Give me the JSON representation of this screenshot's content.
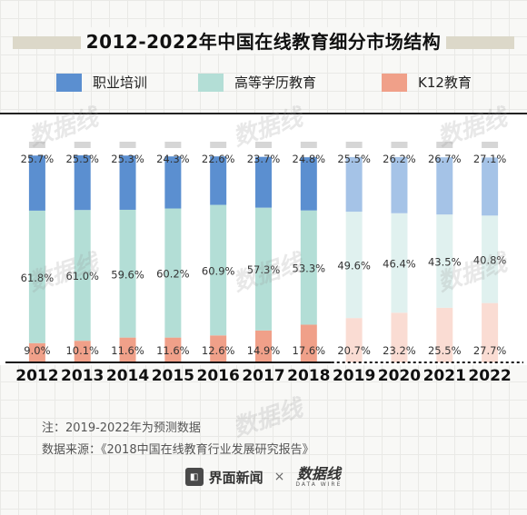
{
  "title": "2012-2022年中国在线教育细分市场结构",
  "legend": [
    {
      "label": "职业培训",
      "color": "#5b8fd0"
    },
    {
      "label": "高等学历教育",
      "color": "#b3ded6"
    },
    {
      "label": "K12教育",
      "color": "#f0a089"
    }
  ],
  "notes": {
    "note1": "注：2019-2022年为预测数据",
    "note2": "数据来源：《2018中国在线教育行业发展研究报告》"
  },
  "footer": {
    "jiemian_logo_icon": "jiemian-logo-icon",
    "jiemian_text": "界面新闻",
    "times": "×",
    "shuju_text": "数据线",
    "shuju_en": "DATA WIRE"
  },
  "watermark": "数据线",
  "colors": {
    "actual": [
      "#5b8fd0",
      "#b3ded6",
      "#f0a089"
    ],
    "forecast": [
      "#a5c3e7",
      "#e0f1ef",
      "#fadcd3"
    ],
    "cap": "#d6d6d6"
  },
  "chart_data": {
    "type": "bar",
    "stacked": true,
    "normalized": true,
    "categories": [
      "2012",
      "2013",
      "2014",
      "2015",
      "2016",
      "2017",
      "2018",
      "2019",
      "2020",
      "2021",
      "2022"
    ],
    "forecast_from": "2019",
    "series": [
      {
        "name": "职业培训",
        "values": [
          25.7,
          25.5,
          25.3,
          24.3,
          22.6,
          23.7,
          24.8,
          25.5,
          26.2,
          26.7,
          27.1
        ],
        "labels": [
          "25.7%",
          "25.5%",
          "25.3%",
          "24.3%",
          "22.6%",
          "23.7%",
          "24.8%",
          "25.5%",
          "26.2%",
          "26.7%",
          "27.1%"
        ]
      },
      {
        "name": "高等学历教育",
        "values": [
          61.8,
          61.0,
          59.6,
          60.2,
          60.9,
          57.3,
          53.3,
          49.6,
          46.4,
          43.5,
          40.8
        ],
        "labels": [
          "61.8%",
          "61.0%",
          "59.6%",
          "60.2%",
          "60.9%",
          "57.3%",
          "53.3%",
          "49.6%",
          "46.4%",
          "43.5%",
          "40.8%"
        ]
      },
      {
        "name": "K12教育",
        "values": [
          9.0,
          10.1,
          11.6,
          11.6,
          12.6,
          14.9,
          17.6,
          20.7,
          23.2,
          25.5,
          27.7
        ],
        "labels": [
          "9.0%",
          "10.1%",
          "11.6%",
          "11.6%",
          "12.6%",
          "14.9%",
          "17.6%",
          "20.7%",
          "23.2%",
          "25.5%",
          "27.7%"
        ]
      }
    ]
  }
}
